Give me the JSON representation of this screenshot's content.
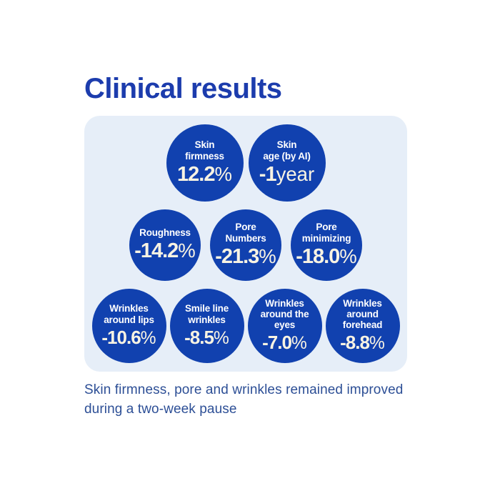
{
  "title": "Clinical results",
  "footer": "Skin firmness, pore and wrinkles remained improved during a two-week pause",
  "colors": {
    "title": "#1c3cad",
    "circle": "#1141af",
    "panel_bg": "#e6eef8",
    "value_text": "#f8f3e3",
    "label_text": "#ffffff",
    "footer_text": "#2d4f96"
  },
  "rows": [
    {
      "circles": [
        {
          "label": "Skin\nfirmness",
          "value": "12.2",
          "unit": "%"
        },
        {
          "label": "Skin\nage (by AI)",
          "value": "-1",
          "unit": "year"
        }
      ]
    },
    {
      "circles": [
        {
          "label": "Roughness",
          "value": "-14.2",
          "unit": "%"
        },
        {
          "label": "Pore\nNumbers",
          "value": "-21.3",
          "unit": "%"
        },
        {
          "label": "Pore\nminimizing",
          "value": "-18.0",
          "unit": "%"
        }
      ]
    },
    {
      "circles": [
        {
          "label": "Wrinkles\naround lips",
          "value": "-10.6",
          "unit": "%"
        },
        {
          "label": "Smile line\nwrinkles",
          "value": "-8.5",
          "unit": "%"
        },
        {
          "label": "Wrinkles\naround the\neyes",
          "value": "-7.0",
          "unit": "%"
        },
        {
          "label": "Wrinkles\naround\nforehead",
          "value": "-8.8",
          "unit": "%"
        }
      ]
    }
  ],
  "chart_data": {
    "type": "table",
    "title": "Clinical results",
    "categories": [
      "Skin firmness",
      "Skin age (by AI)",
      "Roughness",
      "Pore Numbers",
      "Pore minimizing",
      "Wrinkles around lips",
      "Smile line wrinkles",
      "Wrinkles around the eyes",
      "Wrinkles around forehead"
    ],
    "values": [
      12.2,
      -1,
      -14.2,
      -21.3,
      -18.0,
      -10.6,
      -8.5,
      -7.0,
      -8.8
    ],
    "units": [
      "%",
      "year",
      "%",
      "%",
      "%",
      "%",
      "%",
      "%",
      "%"
    ],
    "annotations": [
      "Skin firmness, pore and wrinkles remained improved during a two-week pause"
    ]
  }
}
